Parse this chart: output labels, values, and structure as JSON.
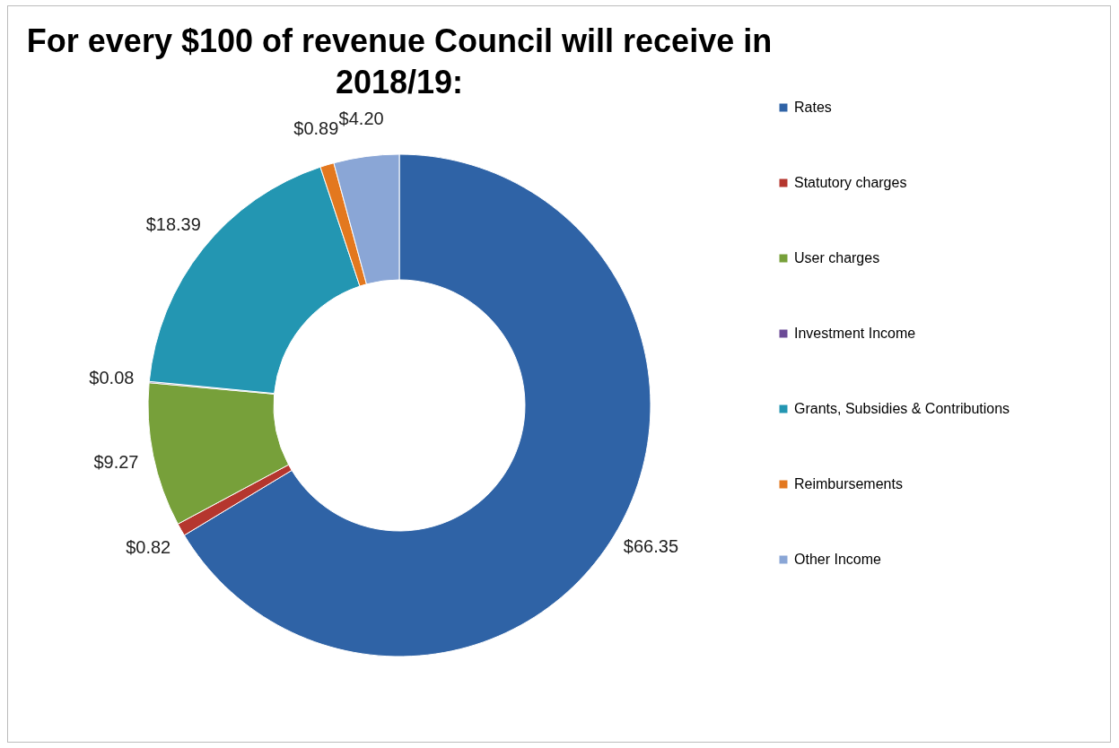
{
  "chart_data": {
    "type": "donut",
    "title": "For every $100 of revenue Council will receive in 2018/19:",
    "categories": [
      "Rates",
      "Statutory charges",
      "User charges",
      "Investment Income",
      "Grants, Subsidies & Contributions",
      "Reimbursements",
      "Other Income"
    ],
    "values": [
      66.35,
      0.82,
      9.27,
      0.08,
      18.39,
      0.89,
      4.2
    ],
    "colors": [
      "#2f63a6",
      "#b5362e",
      "#77a03a",
      "#6b4a96",
      "#2396b2",
      "#e3781f",
      "#8aa6d6"
    ],
    "value_labels": [
      "$66.35",
      "$0.82",
      "$9.27",
      "$0.08",
      "$18.39",
      "$0.89",
      "$4.20"
    ],
    "legend": "right"
  }
}
